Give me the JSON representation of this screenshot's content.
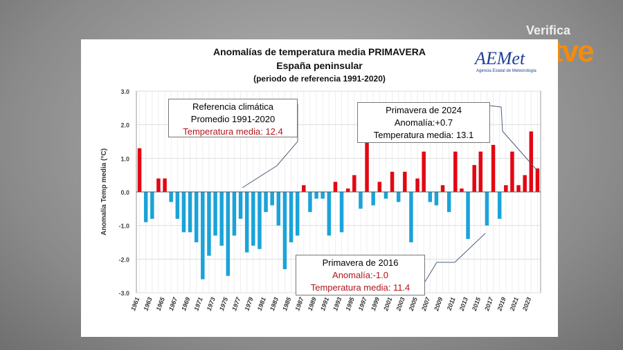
{
  "branding": {
    "verifica": "Verifica",
    "rtve": "rtve",
    "aemet": "AEMet",
    "aemet_sub": "Agencia Estatal de Meteorología"
  },
  "chart_data": {
    "type": "bar",
    "title": "Anomalías de temperatura media PRIMAVERA",
    "subtitle": "España peninsular",
    "note": "(periodo de referencia 1991-2020)",
    "xlabel": "",
    "ylabel": "Anomalía Temp media (°C)",
    "ylim": [
      -3.0,
      3.0
    ],
    "yticks": [
      "3.0",
      "2.0",
      "1.0",
      "0.0",
      "-1.0",
      "-2.0",
      "-3.0"
    ],
    "grid": true,
    "colors": {
      "positive": "#e30613",
      "negative": "#1aa3d9"
    },
    "categories": [
      1961,
      1962,
      1963,
      1964,
      1965,
      1966,
      1967,
      1968,
      1969,
      1970,
      1971,
      1972,
      1973,
      1974,
      1975,
      1976,
      1977,
      1978,
      1979,
      1980,
      1981,
      1982,
      1983,
      1984,
      1985,
      1986,
      1987,
      1988,
      1989,
      1990,
      1991,
      1992,
      1993,
      1994,
      1995,
      1996,
      1997,
      1998,
      1999,
      2000,
      2001,
      2002,
      2003,
      2004,
      2005,
      2006,
      2007,
      2008,
      2009,
      2010,
      2011,
      2012,
      2013,
      2014,
      2015,
      2016,
      2017,
      2018,
      2019,
      2020,
      2021,
      2022,
      2023,
      2024
    ],
    "values": [
      1.3,
      -0.9,
      -0.8,
      0.4,
      0.4,
      -0.3,
      -0.8,
      -1.2,
      -1.2,
      -1.5,
      -2.6,
      -1.9,
      -1.3,
      -1.6,
      -2.5,
      -1.3,
      -0.8,
      -1.8,
      -1.6,
      -1.7,
      -0.6,
      -0.4,
      -1.0,
      -2.3,
      -1.5,
      -1.3,
      0.2,
      -0.6,
      -0.2,
      -0.2,
      -1.3,
      0.3,
      -1.2,
      0.1,
      0.5,
      -0.5,
      1.5,
      -0.4,
      0.3,
      -0.2,
      0.6,
      -0.3,
      0.6,
      -1.5,
      0.4,
      1.2,
      -0.3,
      -0.4,
      0.2,
      -0.6,
      1.2,
      0.1,
      -1.4,
      0.8,
      1.2,
      -1.0,
      1.4,
      -0.8,
      0.2,
      1.2,
      0.2,
      0.5,
      1.8,
      0.7
    ],
    "annotations": [
      {
        "lines": [
          "Referencia climática",
          "Promedio 1991-2020",
          "Temperatura media: 12.4"
        ]
      },
      {
        "lines": [
          "Primavera de 2024",
          "Anomalía:+0.7",
          "Temperatura media: 13.1"
        ]
      },
      {
        "lines": [
          "Primavera de 2016",
          "Anomalía:-1.0",
          "Temperatura media: 11.4"
        ]
      }
    ]
  }
}
